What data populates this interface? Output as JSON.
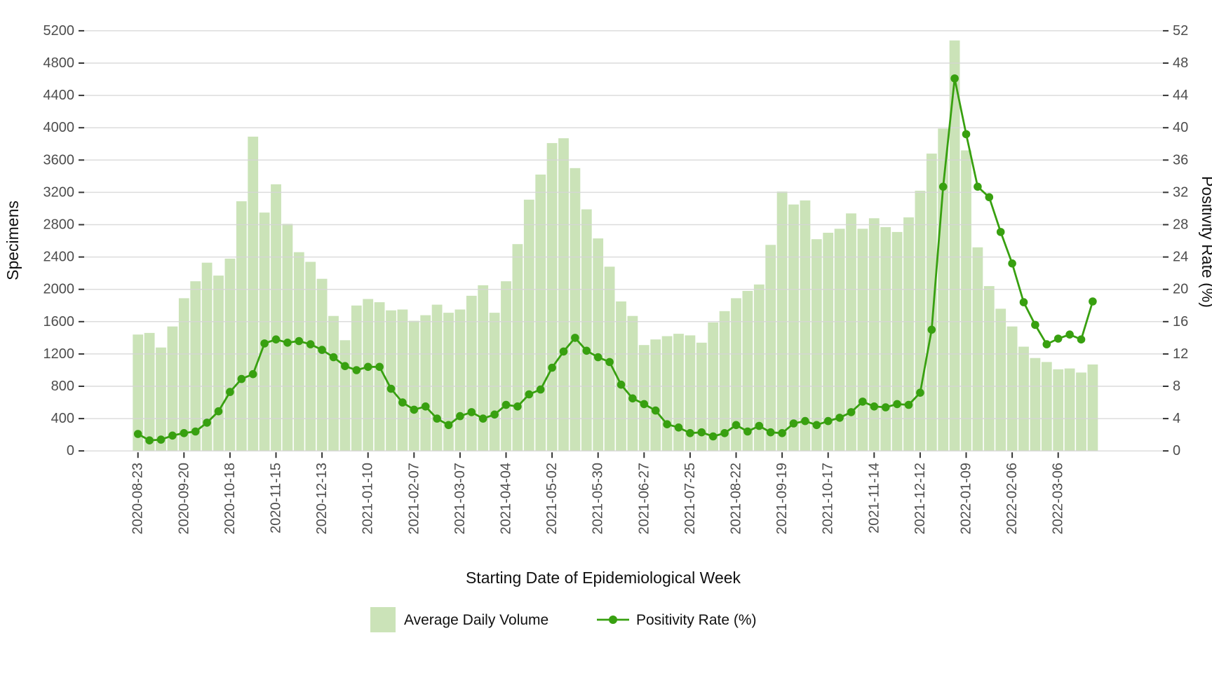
{
  "figure": {
    "xlabel": "Starting Date of Epidemiological Week",
    "ylabel_left": "Specimens",
    "ylabel_right": "Positivity Rate (%)",
    "legend": {
      "volume_label": "Average Daily Volume",
      "positivity_label": "Positivity Rate (%)"
    },
    "colors": {
      "bar_fill": "#cbe3b8",
      "line_green": "#38a010",
      "gridline": "#d6d6d6",
      "tick_text": "#4d4d4d",
      "axis_title_text": "#111111"
    }
  },
  "chart_data": {
    "type": "bar+line",
    "title": "",
    "xlabel": "Starting Date of Epidemiological Week",
    "ylabel_left": "Specimens",
    "ylabel_right": "Positivity Rate (%)",
    "ylim_left": [
      0,
      5200
    ],
    "ylim_right": [
      0,
      52
    ],
    "y_left_tick_step": 400,
    "y_right_tick_step": 4,
    "grid": "horizontal-only",
    "legend_position": "bottom",
    "y_left_ticks": [
      "0",
      "400",
      "800",
      "1200",
      "1600",
      "2000",
      "2400",
      "2800",
      "3200",
      "3600",
      "4000",
      "4400",
      "4800",
      "5200"
    ],
    "y_right_ticks": [
      "0",
      "4",
      "8",
      "12",
      "16",
      "20",
      "24",
      "28",
      "32",
      "36",
      "40",
      "44",
      "48",
      "52"
    ],
    "x_tick_labels": [
      "2020-08-23",
      "2020-09-20",
      "2020-10-18",
      "2020-11-15",
      "2020-12-13",
      "2021-01-10",
      "2021-02-07",
      "2021-03-07",
      "2021-04-04",
      "2021-05-02",
      "2021-05-30",
      "2021-06-27",
      "2021-07-25",
      "2021-08-22",
      "2021-09-19",
      "2021-10-17",
      "2021-11-14",
      "2021-12-12",
      "2022-01-09",
      "2022-02-06",
      "2022-03-06"
    ],
    "x_tick_every_n_weeks": 4,
    "x": [
      "2020-08-23",
      "2020-08-30",
      "2020-09-06",
      "2020-09-13",
      "2020-09-20",
      "2020-09-27",
      "2020-10-04",
      "2020-10-11",
      "2020-10-18",
      "2020-10-25",
      "2020-11-01",
      "2020-11-08",
      "2020-11-15",
      "2020-11-22",
      "2020-11-29",
      "2020-12-06",
      "2020-12-13",
      "2020-12-20",
      "2020-12-27",
      "2021-01-03",
      "2021-01-10",
      "2021-01-17",
      "2021-01-24",
      "2021-01-31",
      "2021-02-07",
      "2021-02-14",
      "2021-02-21",
      "2021-02-28",
      "2021-03-07",
      "2021-03-14",
      "2021-03-21",
      "2021-03-28",
      "2021-04-04",
      "2021-04-11",
      "2021-04-18",
      "2021-04-25",
      "2021-05-02",
      "2021-05-09",
      "2021-05-16",
      "2021-05-23",
      "2021-05-30",
      "2021-06-06",
      "2021-06-13",
      "2021-06-20",
      "2021-06-27",
      "2021-07-04",
      "2021-07-11",
      "2021-07-18",
      "2021-07-25",
      "2021-08-01",
      "2021-08-08",
      "2021-08-15",
      "2021-08-22",
      "2021-08-29",
      "2021-09-05",
      "2021-09-12",
      "2021-09-19",
      "2021-09-26",
      "2021-10-03",
      "2021-10-10",
      "2021-10-17",
      "2021-10-24",
      "2021-10-31",
      "2021-11-07",
      "2021-11-14",
      "2021-11-21",
      "2021-11-28",
      "2021-12-05",
      "2021-12-12",
      "2021-12-19",
      "2021-12-26",
      "2022-01-02",
      "2022-01-09",
      "2022-01-16",
      "2022-01-23",
      "2022-01-30",
      "2022-02-06",
      "2022-02-13",
      "2022-02-20",
      "2022-02-27",
      "2022-03-06",
      "2022-03-13",
      "2022-03-20",
      "2022-03-27"
    ],
    "series": [
      {
        "name": "Average Daily Volume",
        "type": "bar",
        "axis": "left",
        "values": [
          1440,
          1460,
          1280,
          1540,
          1890,
          2100,
          2330,
          2170,
          2380,
          3090,
          3890,
          2950,
          3300,
          2810,
          2460,
          2340,
          2130,
          1670,
          1370,
          1800,
          1880,
          1840,
          1740,
          1750,
          1610,
          1680,
          1810,
          1710,
          1750,
          1920,
          2050,
          1710,
          2100,
          2560,
          3110,
          3420,
          3810,
          3870,
          3500,
          2990,
          2630,
          2280,
          1850,
          1670,
          1310,
          1380,
          1420,
          1450,
          1430,
          1340,
          1590,
          1730,
          1890,
          1980,
          2060,
          2550,
          3210,
          3050,
          3100,
          2620,
          2700,
          2750,
          2940,
          2750,
          2880,
          2770,
          2710,
          2890,
          3220,
          3680,
          3990,
          5080,
          3720,
          2520,
          2040,
          1760,
          1540,
          1290,
          1150,
          1100,
          1010,
          1020,
          970,
          1070
        ]
      },
      {
        "name": "Positivity Rate (%)",
        "type": "line",
        "axis": "right",
        "values": [
          2.1,
          1.3,
          1.4,
          1.9,
          2.2,
          2.4,
          3.5,
          4.9,
          7.3,
          8.9,
          9.5,
          13.3,
          13.8,
          13.4,
          13.6,
          13.2,
          12.5,
          11.6,
          10.5,
          10.0,
          10.4,
          10.4,
          7.7,
          6.0,
          5.1,
          5.5,
          4.0,
          3.2,
          4.3,
          4.8,
          4.0,
          4.5,
          5.7,
          5.5,
          7.0,
          7.6,
          10.3,
          12.3,
          14.0,
          12.4,
          11.6,
          11.0,
          8.2,
          6.5,
          5.8,
          5.0,
          3.3,
          2.9,
          2.2,
          2.3,
          1.8,
          2.2,
          3.2,
          2.4,
          3.1,
          2.3,
          2.2,
          3.4,
          3.7,
          3.2,
          3.7,
          4.1,
          4.8,
          6.1,
          5.5,
          5.4,
          5.8,
          5.7,
          7.2,
          15.0,
          32.7,
          46.1,
          39.2,
          32.7,
          31.4,
          27.1,
          23.2,
          18.4,
          15.6,
          13.2,
          13.9,
          14.4,
          13.8,
          18.5
        ]
      }
    ]
  }
}
